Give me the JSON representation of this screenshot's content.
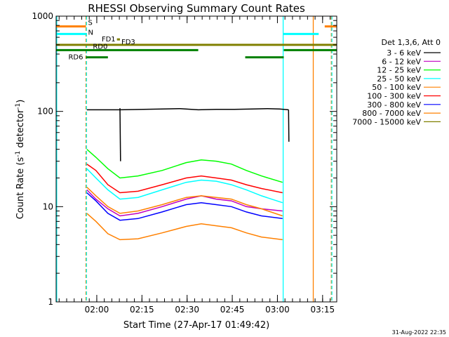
{
  "chart_data": {
    "type": "line",
    "title": "RHESSI Observing Summary Count Rates",
    "xlabel": "Start Time (27-Apr-17 01:49:42)",
    "ylabel_main": "Count Rate (s",
    "ylabel_sup1": "-1",
    "ylabel_mid": " detector",
    "ylabel_sup2": "-1",
    "ylabel_end": ")",
    "y_scale": "log",
    "ylim": [
      1,
      1000
    ],
    "x_tick_labels": [
      "02:00",
      "02:15",
      "02:30",
      "02:45",
      "03:00",
      "03:15"
    ],
    "x_tick_minutes": [
      10.3,
      25.3,
      40.3,
      55.3,
      70.3,
      85.3
    ],
    "xlim_minutes": [
      -3.2,
      90
    ],
    "y_tick_labels": [
      "1",
      "10",
      "100",
      "1000"
    ],
    "y_tick_values": [
      1,
      10,
      100,
      1000
    ],
    "legend_header": "Det 1,3,6, Att 0",
    "legend_position": "right",
    "series": [
      {
        "name": "3 - 6 keV",
        "color": "#000000",
        "segments": [
          [
            [
              7,
              104
            ],
            [
              18,
              104
            ],
            [
              32,
              106
            ],
            [
              38,
              107
            ],
            [
              44,
              104
            ],
            [
              50,
              105
            ],
            [
              56,
              105
            ],
            [
              62,
              106
            ],
            [
              67,
              107
            ],
            [
              71,
              106
            ],
            [
              74,
              104
            ]
          ],
          [
            [
              18,
              108
            ],
            [
              18.2,
              30
            ]
          ],
          [
            [
              74,
              104
            ],
            [
              74.1,
              48
            ]
          ]
        ]
      },
      {
        "name": "6 - 12 keV",
        "color": "#c000c0",
        "segments": [
          [
            [
              7,
              15
            ],
            [
              10,
              12
            ],
            [
              14,
              9.5
            ],
            [
              18,
              8
            ],
            [
              24,
              8.5
            ],
            [
              32,
              10
            ],
            [
              40,
              12
            ],
            [
              45,
              13
            ],
            [
              50,
              12
            ],
            [
              55,
              11.5
            ],
            [
              60,
              10
            ],
            [
              65,
              9.5
            ],
            [
              72,
              9
            ]
          ]
        ]
      },
      {
        "name": "12 - 25 keV",
        "color": "#00ff00",
        "segments": [
          [
            [
              7,
              40
            ],
            [
              10,
              33
            ],
            [
              14,
              25
            ],
            [
              18,
              20
            ],
            [
              24,
              21
            ],
            [
              32,
              24
            ],
            [
              40,
              29
            ],
            [
              45,
              31
            ],
            [
              50,
              30
            ],
            [
              55,
              28
            ],
            [
              60,
              24
            ],
            [
              65,
              21
            ],
            [
              72,
              18
            ]
          ]
        ]
      },
      {
        "name": "25 - 50 keV",
        "color": "#00ffff",
        "segments": [
          [
            [
              7,
              25
            ],
            [
              10,
              20
            ],
            [
              14,
              15
            ],
            [
              18,
              12
            ],
            [
              24,
              12.5
            ],
            [
              32,
              15
            ],
            [
              40,
              18
            ],
            [
              45,
              19
            ],
            [
              50,
              18.5
            ],
            [
              55,
              17
            ],
            [
              60,
              15
            ],
            [
              65,
              13
            ],
            [
              72,
              11
            ]
          ]
        ]
      },
      {
        "name": "50 - 100 keV",
        "color": "#ff8000",
        "segments": [
          [
            [
              7,
              16
            ],
            [
              10,
              13
            ],
            [
              14,
              10
            ],
            [
              18,
              8.5
            ],
            [
              24,
              9
            ],
            [
              32,
              10.5
            ],
            [
              40,
              12.5
            ],
            [
              45,
              13
            ],
            [
              50,
              12.5
            ],
            [
              55,
              12
            ],
            [
              60,
              10.5
            ],
            [
              65,
              9.5
            ],
            [
              72,
              8
            ]
          ]
        ]
      },
      {
        "name": "100 - 300 keV",
        "color": "#ff0000",
        "segments": [
          [
            [
              7,
              28
            ],
            [
              10,
              24
            ],
            [
              14,
              17
            ],
            [
              18,
              14
            ],
            [
              24,
              14.5
            ],
            [
              32,
              17
            ],
            [
              40,
              20
            ],
            [
              45,
              21
            ],
            [
              50,
              20
            ],
            [
              55,
              19
            ],
            [
              60,
              17
            ],
            [
              65,
              15.5
            ],
            [
              72,
              14
            ]
          ]
        ]
      },
      {
        "name": "300 - 800 keV",
        "color": "#0000ff",
        "segments": [
          [
            [
              7,
              14
            ],
            [
              10,
              11.5
            ],
            [
              14,
              8.5
            ],
            [
              18,
              7.2
            ],
            [
              24,
              7.5
            ],
            [
              32,
              8.8
            ],
            [
              40,
              10.5
            ],
            [
              45,
              11
            ],
            [
              50,
              10.5
            ],
            [
              55,
              10
            ],
            [
              60,
              8.8
            ],
            [
              65,
              8
            ],
            [
              72,
              7.5
            ]
          ]
        ]
      },
      {
        "name": "800 - 7000 keV",
        "color": "#ff8000",
        "segments": [
          [
            [
              7,
              8.5
            ],
            [
              10,
              7
            ],
            [
              14,
              5.2
            ],
            [
              18,
              4.5
            ],
            [
              24,
              4.6
            ],
            [
              32,
              5.3
            ],
            [
              40,
              6.2
            ],
            [
              45,
              6.6
            ],
            [
              50,
              6.3
            ],
            [
              55,
              6
            ],
            [
              60,
              5.3
            ],
            [
              65,
              4.8
            ],
            [
              72,
              4.5
            ]
          ]
        ]
      },
      {
        "name": "7000 - 15000 keV",
        "color": "#808000",
        "segments": []
      }
    ],
    "flags": [
      {
        "label": "S",
        "color": "#ff8000",
        "y": 780,
        "segments": [
          [
            -3.2,
            6.7
          ],
          [
            86,
            90
          ]
        ]
      },
      {
        "label": "N",
        "color": "#00ffff",
        "y": 650,
        "segments": [
          [
            -3.2,
            6.7
          ],
          [
            72.2,
            84
          ]
        ]
      },
      {
        "label": "FD1",
        "color": "#808000",
        "y": 570,
        "segments": [
          [
            17,
            18
          ]
        ]
      },
      {
        "label": "FD3",
        "color": "#808000",
        "y": 500,
        "segments": [
          [
            -3.2,
            90
          ]
        ]
      },
      {
        "label": "RD0",
        "color": "#008000",
        "y": 440,
        "segments": [
          [
            -3.2,
            44
          ],
          [
            72.4,
            90
          ]
        ]
      },
      {
        "label": "RD6",
        "color": "#008000",
        "y": 370,
        "segments": [
          [
            6.7,
            14
          ],
          [
            59.6,
            72.4
          ]
        ]
      }
    ],
    "vertical_markers": [
      {
        "color": "#00ffff",
        "x": -3.0,
        "style": "solid"
      },
      {
        "color": "#ff8000",
        "x": 6.7,
        "style": "dashed"
      },
      {
        "color": "#00ffff",
        "x": 6.9,
        "style": "dashed"
      },
      {
        "color": "#00ffff",
        "x": 72.2,
        "style": "solid"
      },
      {
        "color": "#ff8000",
        "x": 82.2,
        "style": "solid"
      },
      {
        "color": "#ff8000",
        "x": 88.2,
        "style": "dashed"
      },
      {
        "color": "#00ffff",
        "x": 88.4,
        "style": "dashed"
      }
    ]
  },
  "footer_date": "31-Aug-2022 22:35"
}
